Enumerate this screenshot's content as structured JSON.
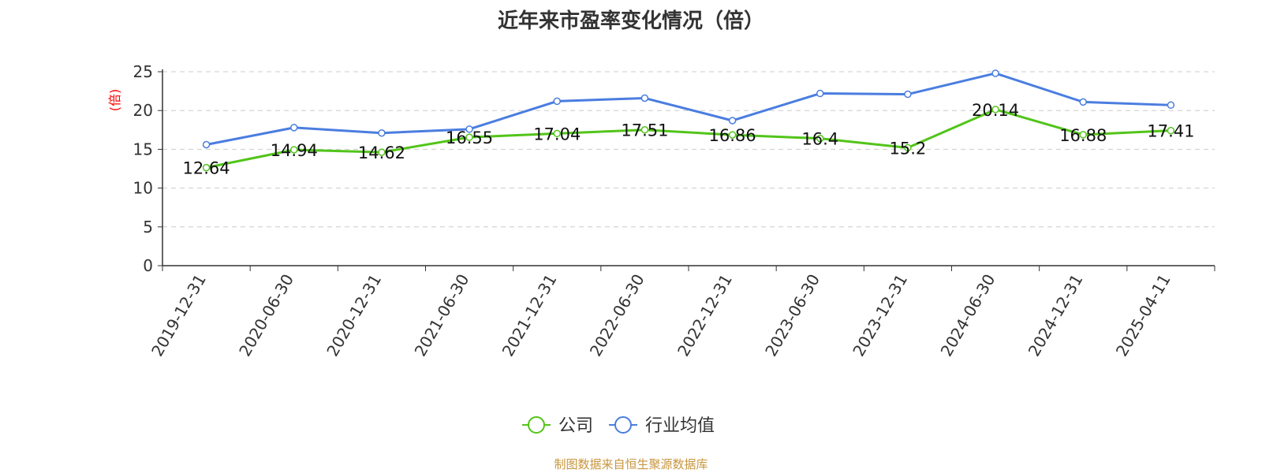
{
  "title": "近年来市盈率变化情况（倍）",
  "source": "制图数据来自恒生聚源数据库",
  "colors": {
    "company": "#52c41a",
    "industry": "#4a7de0",
    "unit_label": "#ff0000",
    "source": "#c8963e"
  },
  "chart_data": {
    "type": "line",
    "title": "近年来市盈率变化情况（倍）",
    "ylabel": "(倍)",
    "ylim": [
      0,
      25
    ],
    "yticks": [
      0,
      5,
      10,
      15,
      20,
      25
    ],
    "grid": true,
    "legend_position": "bottom",
    "categories": [
      "2019-12-31",
      "2020-06-30",
      "2020-12-31",
      "2021-06-30",
      "2021-12-31",
      "2022-06-30",
      "2022-12-31",
      "2023-06-30",
      "2023-12-31",
      "2024-06-30",
      "2024-12-31",
      "2025-04-11"
    ],
    "series": [
      {
        "name": "公司",
        "color": "#52c41a",
        "show_labels": true,
        "values": [
          12.64,
          14.94,
          14.62,
          16.55,
          17.04,
          17.51,
          16.86,
          16.4,
          15.2,
          20.14,
          16.88,
          17.41
        ]
      },
      {
        "name": "行业均值",
        "color": "#4a7de0",
        "show_labels": false,
        "values": [
          15.6,
          17.8,
          17.1,
          17.6,
          21.2,
          21.6,
          18.7,
          22.2,
          22.1,
          24.8,
          21.1,
          20.7
        ]
      }
    ]
  }
}
